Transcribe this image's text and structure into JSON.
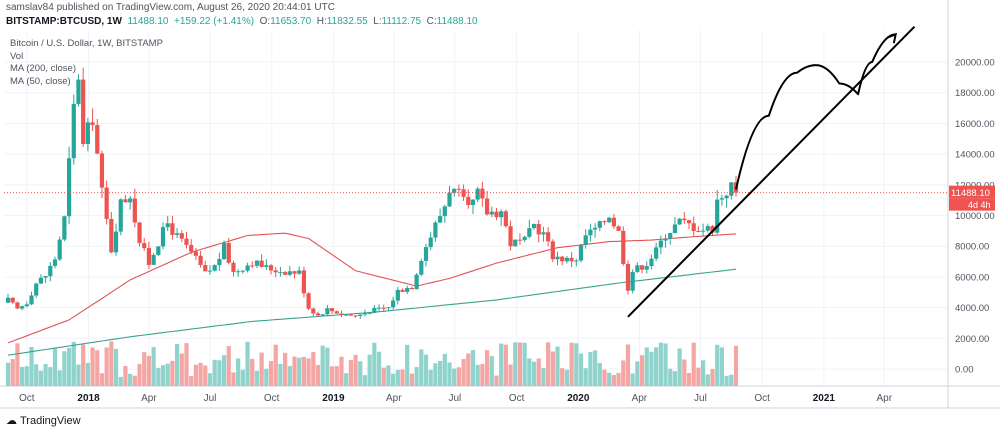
{
  "header": {
    "published": "samslav84 published on TradingView.com, August 26, 2020 20:44:01 UTC",
    "symbol": "BITSTAMP:BTCUSD, 1W",
    "price": "11488.10",
    "change": "+159.22 (+1.41%)",
    "o_label": "O:",
    "o_value": "11653.70",
    "h_label": "H:",
    "h_value": "11832.55",
    "l_label": "L:",
    "l_value": "11112.75",
    "c_label": "C:",
    "c_value": "11488.10"
  },
  "legend": {
    "title": "Bitcoin / U.S. Dollar, 1W, BITSTAMP",
    "vol": "Vol",
    "ma200": "MA (200, close)",
    "ma50": "MA (50, close)"
  },
  "footer": {
    "logo_text": "TradingView"
  },
  "colors": {
    "up": "#26a69a",
    "down": "#ef5350",
    "vol_up": "#8fd3cc",
    "vol_down": "#f4a6a4",
    "ma50": "#e35353",
    "ma200": "#3aa390",
    "drawing": "#000000",
    "grid": "#f0f3fa",
    "price_tag": "#ef5350"
  },
  "chart_data": {
    "type": "candlestick",
    "title": "Bitcoin / U.S. Dollar, 1W, BITSTAMP",
    "price_axis_ticks": [
      0,
      2000,
      4000,
      6000,
      8000,
      10000,
      12000,
      14000,
      16000,
      18000,
      20000
    ],
    "price_axis_tick_labels": [
      "0.00",
      "2000.00",
      "4000.00",
      "6000.00",
      "8000.00",
      "10000.00",
      "12000.00",
      "14000.00",
      "16000.00",
      "18000.00",
      "20000.00"
    ],
    "time_axis_ticks": [
      "Oct",
      "2018",
      "Apr",
      "Jul",
      "Oct",
      "2019",
      "Apr",
      "Jul",
      "Oct",
      "2020",
      "Apr",
      "Jul",
      "Oct",
      "2021",
      "Apr"
    ],
    "time_axis_dates": [
      "2017-10-01",
      "2018-01-01",
      "2018-04-01",
      "2018-07-01",
      "2018-10-01",
      "2019-01-01",
      "2019-04-01",
      "2019-07-01",
      "2019-10-01",
      "2020-01-01",
      "2020-04-01",
      "2020-07-01",
      "2020-10-01",
      "2021-01-01",
      "2021-04-01"
    ],
    "last_price": 11488.1,
    "last_price_label": "11488.10",
    "countdown_label": "4d 4h",
    "price_anchors": [
      [
        "2017-09-03",
        4500
      ],
      [
        "2017-09-17",
        3900
      ],
      [
        "2017-10-01",
        4350
      ],
      [
        "2017-10-15",
        5600
      ],
      [
        "2017-10-29",
        6100
      ],
      [
        "2017-11-12",
        7200
      ],
      [
        "2017-11-26",
        9800
      ],
      [
        "2017-12-10",
        17000
      ],
      [
        "2017-12-17",
        19200
      ],
      [
        "2017-12-24",
        14500
      ],
      [
        "2018-01-07",
        16500
      ],
      [
        "2018-01-21",
        11500
      ],
      [
        "2018-02-04",
        7800
      ],
      [
        "2018-02-18",
        10800
      ],
      [
        "2018-03-04",
        11400
      ],
      [
        "2018-03-18",
        8300
      ],
      [
        "2018-04-01",
        6900
      ],
      [
        "2018-04-15",
        8300
      ],
      [
        "2018-04-29",
        9500
      ],
      [
        "2018-05-13",
        8600
      ],
      [
        "2018-06-03",
        7600
      ],
      [
        "2018-06-24",
        6200
      ],
      [
        "2018-07-08",
        6700
      ],
      [
        "2018-07-22",
        7900
      ],
      [
        "2018-08-05",
        6300
      ],
      [
        "2018-09-02",
        7000
      ],
      [
        "2018-09-23",
        6600
      ],
      [
        "2018-10-14",
        6400
      ],
      [
        "2018-11-11",
        6300
      ],
      [
        "2018-11-18",
        5100
      ],
      [
        "2018-11-25",
        4000
      ],
      [
        "2018-12-09",
        3500
      ],
      [
        "2018-12-23",
        3900
      ],
      [
        "2019-01-13",
        3600
      ],
      [
        "2019-02-03",
        3450
      ],
      [
        "2019-02-24",
        3800
      ],
      [
        "2019-03-24",
        4000
      ],
      [
        "2019-04-07",
        5100
      ],
      [
        "2019-04-28",
        5400
      ],
      [
        "2019-05-12",
        7300
      ],
      [
        "2019-05-26",
        8700
      ],
      [
        "2019-06-16",
        10700
      ],
      [
        "2019-06-23",
        11800
      ],
      [
        "2019-07-07",
        11300
      ],
      [
        "2019-07-21",
        10300
      ],
      [
        "2019-08-04",
        11400
      ],
      [
        "2019-08-18",
        10200
      ],
      [
        "2019-09-08",
        10300
      ],
      [
        "2019-09-22",
        8200
      ],
      [
        "2019-10-13",
        8300
      ],
      [
        "2019-10-27",
        9400
      ],
      [
        "2019-11-10",
        8800
      ],
      [
        "2019-11-24",
        7400
      ],
      [
        "2019-12-15",
        7100
      ],
      [
        "2019-12-29",
        7200
      ],
      [
        "2020-01-12",
        8700
      ],
      [
        "2020-02-02",
        9300
      ],
      [
        "2020-02-16",
        10100
      ],
      [
        "2020-03-01",
        8900
      ],
      [
        "2020-03-15",
        5300
      ],
      [
        "2020-03-22",
        6400
      ],
      [
        "2020-04-12",
        6900
      ],
      [
        "2020-04-26",
        7700
      ],
      [
        "2020-05-10",
        8800
      ],
      [
        "2020-05-31",
        9600
      ],
      [
        "2020-06-14",
        9400
      ],
      [
        "2020-07-05",
        9100
      ],
      [
        "2020-07-19",
        9200
      ],
      [
        "2020-07-26",
        11000
      ],
      [
        "2020-08-09",
        11600
      ],
      [
        "2020-08-16",
        11900
      ],
      [
        "2020-08-23",
        11488
      ]
    ],
    "ma50_anchors": [
      [
        "2017-09-03",
        1700
      ],
      [
        "2017-12-03",
        3200
      ],
      [
        "2018-03-04",
        5800
      ],
      [
        "2018-06-03",
        7600
      ],
      [
        "2018-08-26",
        8700
      ],
      [
        "2018-10-21",
        8850
      ],
      [
        "2018-11-25",
        8500
      ],
      [
        "2019-02-03",
        6400
      ],
      [
        "2019-05-05",
        5400
      ],
      [
        "2019-06-23",
        5900
      ],
      [
        "2019-09-01",
        6900
      ],
      [
        "2019-12-01",
        7900
      ],
      [
        "2020-02-16",
        8300
      ],
      [
        "2020-04-19",
        8400
      ],
      [
        "2020-06-14",
        8600
      ],
      [
        "2020-08-23",
        8800
      ]
    ],
    "ma200_anchors": [
      [
        "2017-09-03",
        900
      ],
      [
        "2018-03-04",
        2100
      ],
      [
        "2018-09-02",
        3100
      ],
      [
        "2019-03-03",
        3700
      ],
      [
        "2019-09-01",
        4500
      ],
      [
        "2020-03-01",
        5600
      ],
      [
        "2020-08-23",
        6500
      ]
    ],
    "volume_scale_max": 2000,
    "drawings": [
      {
        "type": "trendline",
        "from": [
          "2020-03-15",
          3400
        ],
        "to": [
          "2021-05-16",
          22300
        ]
      },
      {
        "type": "arrow_path",
        "points": [
          [
            "2020-08-23",
            11700
          ],
          [
            "2020-10-11",
            16500
          ],
          [
            "2020-11-22",
            19300
          ],
          [
            "2020-12-20",
            19800
          ],
          [
            "2021-01-24",
            18600
          ],
          [
            "2021-02-21",
            17900
          ],
          [
            "2021-03-14",
            20000
          ],
          [
            "2021-04-18",
            21800
          ]
        ]
      }
    ]
  }
}
